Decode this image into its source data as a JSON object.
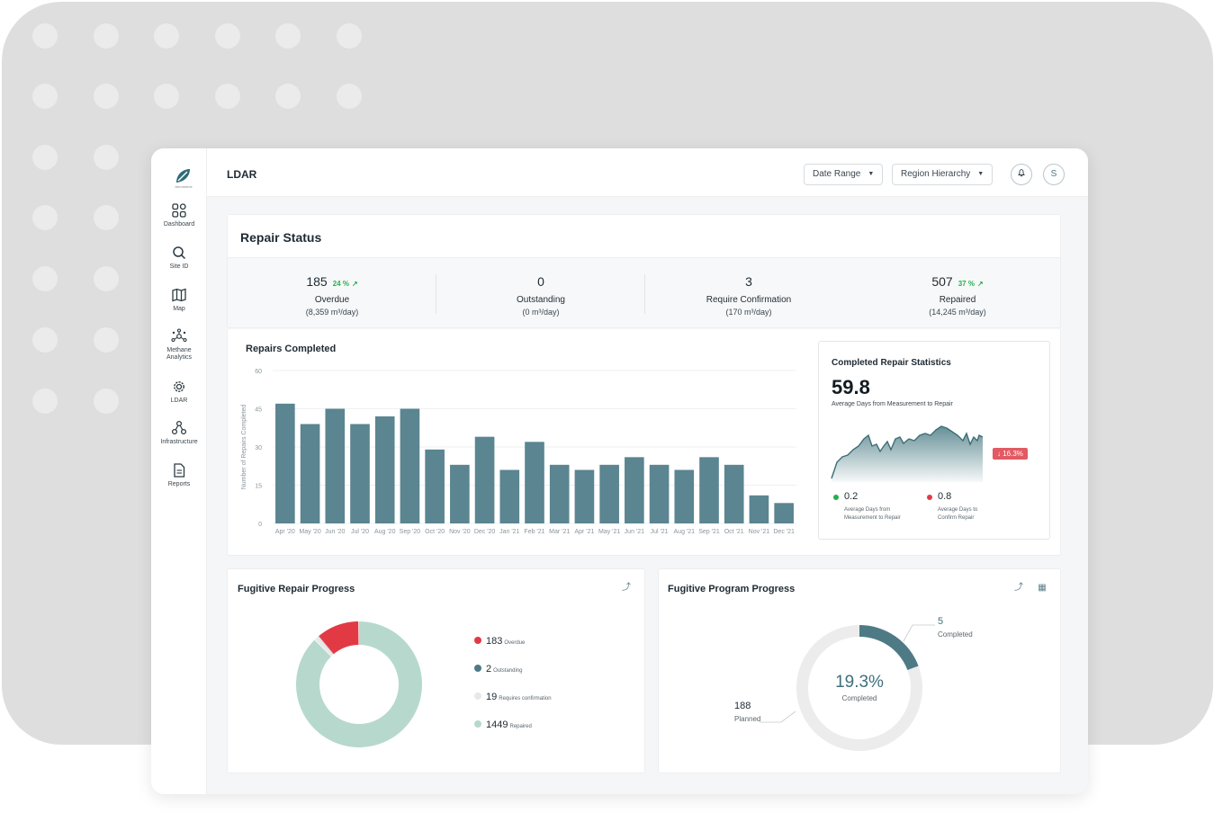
{
  "app": {
    "page_title": "LDAR",
    "logo_caption": "Aerometrix"
  },
  "sidebar": {
    "items": [
      {
        "label": "Dashboard",
        "icon": "grid-icon"
      },
      {
        "label": "Site ID",
        "icon": "search-icon"
      },
      {
        "label": "Map",
        "icon": "map-icon"
      },
      {
        "label": "Methane Analytics",
        "icon": "network-icon"
      },
      {
        "label": "LDAR",
        "icon": "gear-icon"
      },
      {
        "label": "Infrastructure",
        "icon": "nodes-icon"
      },
      {
        "label": "Reports",
        "icon": "document-icon"
      }
    ]
  },
  "header": {
    "date_range": "Date Range",
    "region_hierarchy": "Region Hierarchy",
    "avatar_initial": "S"
  },
  "repair_status": {
    "title": "Repair Status",
    "stats": [
      {
        "value": "185",
        "pct": "24 %",
        "label": "Overdue",
        "sub": "(8,359 m³/day)"
      },
      {
        "value": "0",
        "pct": "",
        "label": "Outstanding",
        "sub": "(0 m³/day)"
      },
      {
        "value": "3",
        "pct": "",
        "label": "Require Confirmation",
        "sub": "(170 m³/day)"
      },
      {
        "value": "507",
        "pct": "37 %",
        "label": "Repaired",
        "sub": "(14,245 m³/day)"
      }
    ]
  },
  "repairs_completed": {
    "title": "Repairs Completed"
  },
  "chart_data": {
    "type": "bar",
    "title": "Repairs Completed",
    "ylabel": "Number of Repairs Completed",
    "xlabel": "",
    "ylim": [
      0,
      60
    ],
    "yticks": [
      0,
      15,
      30,
      45,
      60
    ],
    "grid": true,
    "categories": [
      "Apr '20",
      "May '20",
      "Jun '20",
      "Jul '20",
      "Aug '20",
      "Sep '20",
      "Oct '20",
      "Nov '20",
      "Dec '20",
      "Jan '21",
      "Feb '21",
      "Mar '21",
      "Apr '21",
      "May '21",
      "Jun '21",
      "Jul '21",
      "Aug '21",
      "Sep '21",
      "Oct '21",
      "Nov '21",
      "Dec '21"
    ],
    "values": [
      47,
      39,
      45,
      39,
      42,
      45,
      29,
      23,
      34,
      21,
      32,
      23,
      21,
      23,
      26,
      23,
      21,
      26,
      23,
      11,
      8
    ],
    "color": "#5a8591"
  },
  "completed_stats": {
    "title": "Completed Repair Statistics",
    "big_value": "59.8",
    "big_label": "Average Days from Measurement to Repair",
    "delta": "↓ 16.3%",
    "left_value": "0.2",
    "left_label_1": "Average Days from",
    "left_label_2": "Measurement to Repair",
    "right_value": "0.8",
    "right_label_1": "Average Days to",
    "right_label_2": "Confirm Repair"
  },
  "fugitive_repair": {
    "title": "Fugitive Repair Progress",
    "legend": [
      {
        "value": "183",
        "label": "Overdue",
        "color": "#e23a45",
        "count": 183
      },
      {
        "value": "2",
        "label": "Outstanding",
        "color": "#4e7a86",
        "count": 2
      },
      {
        "value": "19",
        "label": "Requires confirmation",
        "color": "#e6e8e9",
        "count": 19
      },
      {
        "value": "1449",
        "label": "Repaired",
        "color": "#b7d9cd",
        "count": 1449
      }
    ]
  },
  "fugitive_program": {
    "title": "Fugitive Program Progress",
    "center_value": "19.3%",
    "center_label": "Completed",
    "completed_value": "5",
    "completed_label": "Completed",
    "planned_value": "188",
    "planned_label": "Planned",
    "completed_fraction": 0.193
  }
}
